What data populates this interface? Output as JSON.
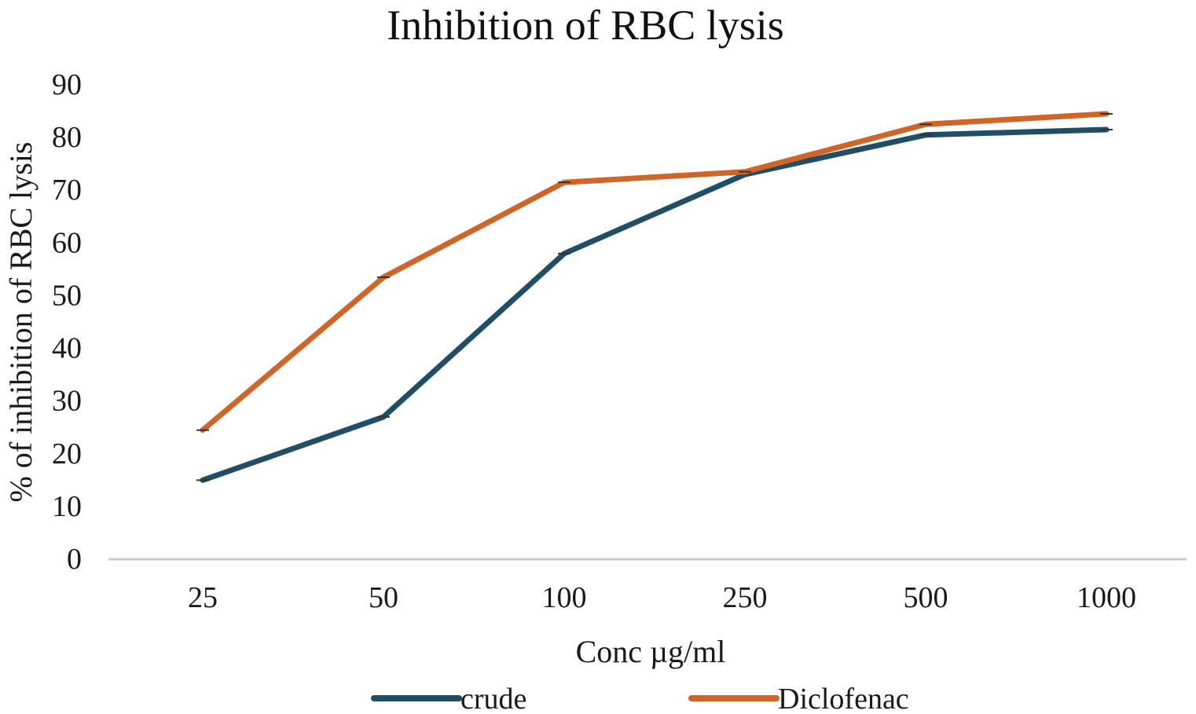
{
  "chart_data": {
    "type": "line",
    "title": "Inhibition of RBC lysis",
    "xlabel": "Conc µg/ml",
    "ylabel": "% of inhibition of RBC lysis",
    "categories": [
      "25",
      "50",
      "100",
      "250",
      "500",
      "1000"
    ],
    "yticks": [
      "0",
      "10",
      "20",
      "30",
      "40",
      "50",
      "60",
      "70",
      "80",
      "90"
    ],
    "ylim": [
      0,
      90
    ],
    "grid": false,
    "legend_position": "bottom",
    "series": [
      {
        "name": "crude",
        "color": "#1f4e66",
        "values": [
          15,
          27,
          58,
          73,
          80.5,
          81.5
        ]
      },
      {
        "name": "Diclofenac",
        "color": "#d0652a",
        "values": [
          24.5,
          53.5,
          71.5,
          73.5,
          82.5,
          84.5
        ]
      }
    ]
  }
}
